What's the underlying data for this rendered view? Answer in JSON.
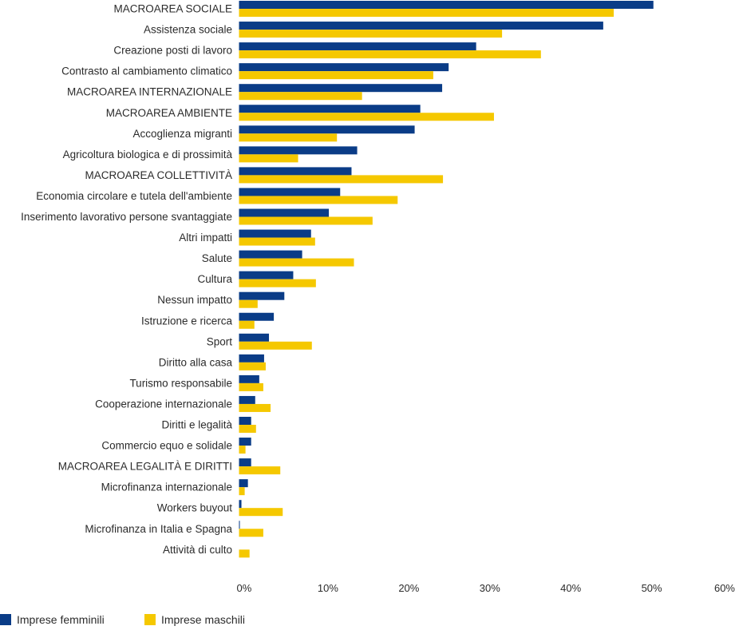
{
  "chart_data": {
    "type": "bar",
    "orientation": "horizontal",
    "categories": [
      "MACROAREA SOCIALE",
      "Assistenza sociale",
      "Creazione posti di lavoro",
      "Contrasto al cambiamento climatico",
      "MACROAREA INTERNAZIONALE",
      "MACROAREA AMBIENTE",
      "Accoglienza migranti",
      "Agricoltura biologica e di prossimità",
      "MACROAREA COLLETTIVITÀ",
      "Economia circolare e tutela dell'ambiente",
      "Inserimento lavorativo persone svantaggiate",
      "Altri impatti",
      "Salute",
      "Cultura",
      "Nessun impatto",
      "Istruzione e ricerca",
      "Sport",
      "Diritto alla casa",
      "Turismo responsabile",
      "Cooperazione internazionale",
      "Diritti e legalità",
      "Commercio equo e solidale",
      "MACROAREA LEGALITÀ E DIRITTI",
      "Microfinanza internazionale",
      "Workers buyout",
      "Microfinanza in Italia e Spagna",
      "Attività di culto"
    ],
    "series": [
      {
        "name": "Imprese femminili",
        "color": "#0a3c87",
        "values": [
          51.2,
          45.0,
          29.3,
          25.9,
          25.1,
          22.4,
          21.7,
          14.6,
          13.9,
          12.5,
          11.1,
          8.9,
          7.8,
          6.7,
          5.6,
          4.3,
          3.7,
          3.1,
          2.5,
          2.0,
          1.5,
          1.5,
          1.5,
          1.1,
          0.3,
          0.1,
          0.0
        ]
      },
      {
        "name": "Imprese maschili",
        "color": "#f5c800",
        "values": [
          46.3,
          32.5,
          37.3,
          24.0,
          15.2,
          31.5,
          12.1,
          7.3,
          25.2,
          19.6,
          16.5,
          9.4,
          14.2,
          9.5,
          2.3,
          1.9,
          9.0,
          3.3,
          3.0,
          3.9,
          2.1,
          0.8,
          5.1,
          0.7,
          5.4,
          3.0,
          1.3
        ]
      }
    ],
    "xlim": [
      0,
      60
    ],
    "xticks": [
      "0%",
      "10%",
      "20%",
      "30%",
      "40%",
      "50%",
      "60%"
    ],
    "legend": "bottom-left",
    "grid": false
  }
}
